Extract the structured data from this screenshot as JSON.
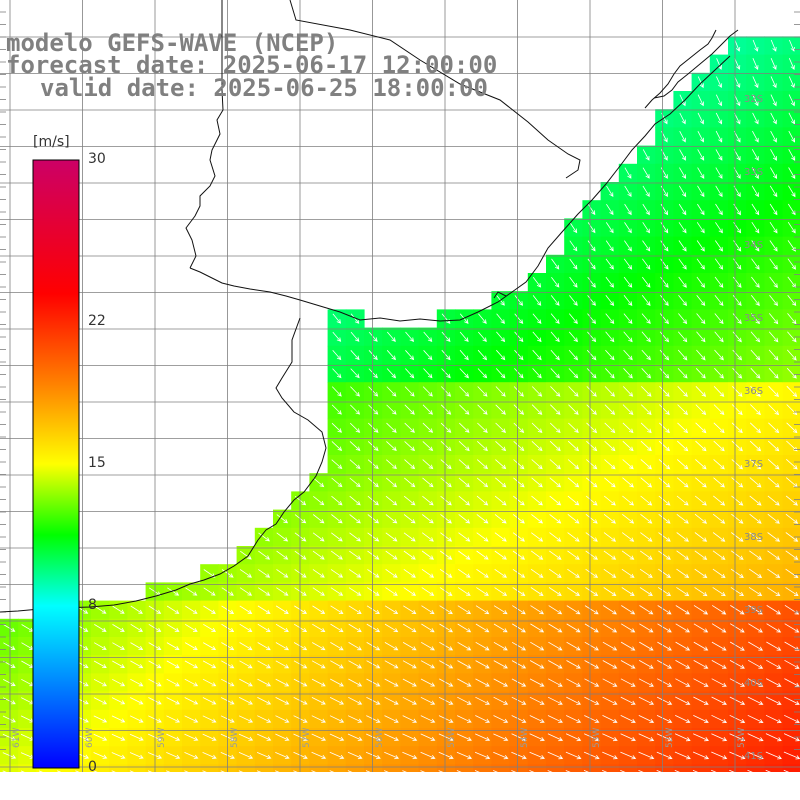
{
  "title": {
    "model": "modelo GEFS-WAVE (NCEP)",
    "forecast": "forecast date: 2025-06-17 12:00:00",
    "valid": "valid date: 2025-06-25 18:00:00"
  },
  "colorbar": {
    "unit": "[m/s]",
    "ticks": [
      {
        "label": "30",
        "value": 30
      },
      {
        "label": "22",
        "value": 22
      },
      {
        "label": "15",
        "value": 15
      },
      {
        "label": "8",
        "value": 8
      },
      {
        "label": "0",
        "value": 0
      }
    ],
    "stops": [
      "#0000ff",
      "#00ffff",
      "#00ff00",
      "#ffff00",
      "#ff8000",
      "#ff0000",
      "#cc0066"
    ]
  },
  "chart_data": {
    "type": "heatmap",
    "variable": "wind speed with direction arrows",
    "value_range": [
      0,
      30
    ],
    "lon_ticks": [
      "61W",
      "60W",
      "59W",
      "58W",
      "57W",
      "56W",
      "55W",
      "54W",
      "53W",
      "52W",
      "51W"
    ],
    "lat_ticks": [
      "32S",
      "33S",
      "34S",
      "35S",
      "36S",
      "37S",
      "38S",
      "39S",
      "40S",
      "41S"
    ],
    "grid_lines": true
  }
}
